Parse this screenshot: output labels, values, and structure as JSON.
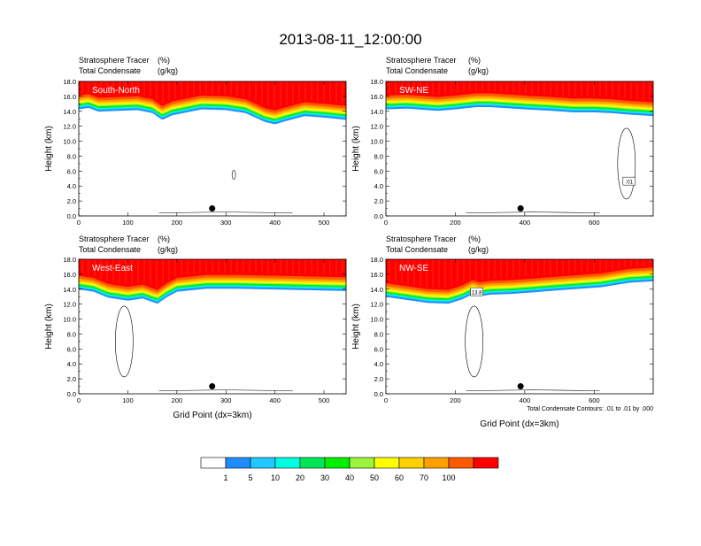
{
  "figure": {
    "title": "2013-08-11_12:00:00"
  },
  "chart_data": [
    {
      "type": "heatmap",
      "panel_label": "South-North",
      "left_string_1": "Stratosphere Tracer",
      "right_string_1": "(%)",
      "left_string_2": "Total Condensate",
      "right_string_2": "(g/kg)",
      "ylabel": "Height (km)",
      "xlabel": "",
      "xlim": [
        0,
        545
      ],
      "ylim": [
        0,
        18
      ],
      "xticks": [
        0,
        100,
        200,
        300,
        400,
        500
      ],
      "yticks": [
        0.0,
        2.0,
        4.0,
        6.0,
        8.0,
        10.0,
        12.0,
        14.0,
        16.0,
        18.0
      ],
      "ytick_labels": [
        "0.0",
        "2.0",
        "4.0",
        "6.0",
        "8.0",
        "10.0",
        "12.0",
        "14.0",
        "16.0",
        "18.0"
      ],
      "tropopause_km": {
        "x": [
          0,
          20,
          40,
          80,
          120,
          150,
          170,
          190,
          250,
          300,
          340,
          360,
          380,
          400,
          420,
          460,
          500,
          545
        ],
        "y": [
          14.6,
          14.8,
          14.3,
          14.4,
          14.5,
          14.1,
          13.2,
          13.8,
          14.6,
          14.5,
          14.1,
          13.5,
          12.9,
          12.6,
          13.0,
          13.7,
          13.5,
          13.2
        ]
      },
      "marker_point": {
        "x": 272,
        "y": 1.0
      }
    },
    {
      "type": "heatmap",
      "panel_label": "SW-NE",
      "left_string_1": "Stratosphere Tracer",
      "right_string_1": "(%)",
      "left_string_2": "Total Condensate",
      "right_string_2": "(g/kg)",
      "ylabel": "Height (km)",
      "xlabel": "",
      "xlim": [
        0,
        770
      ],
      "ylim": [
        0,
        18
      ],
      "xticks": [
        0,
        200,
        400,
        600
      ],
      "yticks": [
        0.0,
        2.0,
        4.0,
        6.0,
        8.0,
        10.0,
        12.0,
        14.0,
        16.0,
        18.0
      ],
      "ytick_labels": [
        "0.0",
        "2.0",
        "4.0",
        "6.0",
        "8.0",
        "10.0",
        "12.0",
        "14.0",
        "16.0",
        "18.0"
      ],
      "tropopause_km": {
        "x": [
          0,
          60,
          150,
          200,
          260,
          300,
          400,
          480,
          540,
          600,
          650,
          700,
          770
        ],
        "y": [
          14.6,
          14.7,
          14.4,
          14.6,
          14.9,
          14.9,
          14.6,
          14.4,
          14.2,
          14.2,
          14.1,
          13.9,
          13.7
        ]
      },
      "marker_point": {
        "x": 388,
        "y": 1.0
      },
      "contour_label": ".01"
    },
    {
      "type": "heatmap",
      "panel_label": "West-East",
      "left_string_1": "Stratosphere Tracer",
      "right_string_1": "(%)",
      "left_string_2": "Total Condensate",
      "right_string_2": "(g/kg)",
      "ylabel": "Height (km)",
      "xlabel": "Grid Point (dx=3km)",
      "xlim": [
        0,
        545
      ],
      "ylim": [
        0,
        18
      ],
      "xticks": [
        0,
        100,
        200,
        300,
        400,
        500
      ],
      "yticks": [
        0.0,
        2.0,
        4.0,
        6.0,
        8.0,
        10.0,
        12.0,
        14.0,
        16.0,
        18.0
      ],
      "ytick_labels": [
        "0.0",
        "2.0",
        "4.0",
        "6.0",
        "8.0",
        "10.0",
        "12.0",
        "14.0",
        "16.0",
        "18.0"
      ],
      "tropopause_km": {
        "x": [
          0,
          30,
          60,
          100,
          130,
          160,
          180,
          200,
          260,
          320,
          400,
          470,
          545
        ],
        "y": [
          14.3,
          14.0,
          13.2,
          12.8,
          13.1,
          12.4,
          13.3,
          14.0,
          14.4,
          14.4,
          14.3,
          14.2,
          14.1
        ]
      },
      "marker_point": {
        "x": 272,
        "y": 1.0
      }
    },
    {
      "type": "heatmap",
      "panel_label": "NW-SE",
      "left_string_1": "Stratosphere Tracer",
      "right_string_1": "(%)",
      "left_string_2": "Total Condensate",
      "right_string_2": "(g/kg)",
      "ylabel": "Height (km)",
      "xlabel": "Grid Point (dx=3km)",
      "xlim": [
        0,
        770
      ],
      "ylim": [
        0,
        18
      ],
      "xticks": [
        0,
        200,
        400,
        600
      ],
      "yticks": [
        0.0,
        2.0,
        4.0,
        6.0,
        8.0,
        10.0,
        12.0,
        14.0,
        16.0,
        18.0
      ],
      "ytick_labels": [
        "0.0",
        "2.0",
        "4.0",
        "6.0",
        "8.0",
        "10.0",
        "12.0",
        "14.0",
        "16.0",
        "18.0"
      ],
      "tropopause_km": {
        "x": [
          0,
          60,
          120,
          180,
          220,
          250,
          270,
          300,
          360,
          420,
          500,
          560,
          620,
          700,
          770
        ],
        "y": [
          13.3,
          12.9,
          12.5,
          12.4,
          13.0,
          13.7,
          13.4,
          13.6,
          13.7,
          13.9,
          14.2,
          14.4,
          14.6,
          15.2,
          15.4
        ]
      },
      "marker_point": {
        "x": 388,
        "y": 1.0
      },
      "contour_label": "13.8",
      "footnote": "Total Condensate Contours: .01 to .01 by .000"
    }
  ],
  "colorbar": {
    "boundaries": [
      "1",
      "5",
      "10",
      "20",
      "30",
      "40",
      "50",
      "60",
      "70",
      "100"
    ],
    "colors": [
      "#ffffff",
      "#1e8cff",
      "#1fc8ff",
      "#00ffe0",
      "#00e659",
      "#00f000",
      "#9cf43c",
      "#ffff00",
      "#ffd000",
      "#ffa000",
      "#ff5a00",
      "#ff0000"
    ]
  }
}
